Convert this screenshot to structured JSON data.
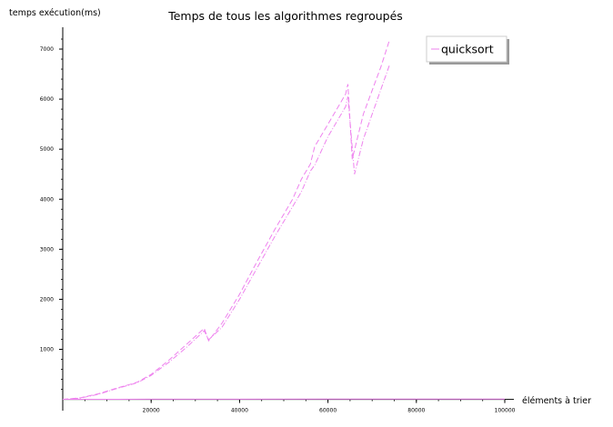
{
  "chart_data": {
    "type": "line",
    "title": "Temps de tous les algorithmes regroupés",
    "xlabel": "éléments à trier",
    "ylabel": "temps exécution(ms)",
    "xlim": [
      0,
      100000
    ],
    "ylim": [
      -80,
      7400
    ],
    "x_ticks": [
      20000,
      40000,
      60000,
      80000,
      100000
    ],
    "y_ticks": [
      1000,
      2000,
      3000,
      4000,
      5000,
      6000,
      7000
    ],
    "grid": false,
    "legend": {
      "placement": "top-right",
      "entries": [
        "quicksort"
      ]
    },
    "series": [
      {
        "name": "quicksort",
        "color": "#ee82ee",
        "dash": "6,3",
        "x": [
          0,
          4000,
          8000,
          12000,
          16000,
          17000,
          20000,
          24000,
          28000,
          32000,
          33000,
          36000,
          40000,
          44000,
          48000,
          52000,
          54000,
          56000,
          57000,
          60000,
          64000,
          64500,
          65500,
          68000,
          72000,
          74000
        ],
        "y": [
          0,
          30,
          110,
          220,
          320,
          350,
          500,
          780,
          1100,
          1420,
          1170,
          1520,
          2100,
          2760,
          3400,
          4000,
          4400,
          4700,
          5050,
          5500,
          6100,
          6300,
          4800,
          5700,
          6650,
          7200
        ]
      },
      {
        "name": "",
        "color": "#ee82ee",
        "dash": "6,2,1,2",
        "x": [
          0,
          4000,
          8000,
          12000,
          16000,
          17000,
          20000,
          24000,
          28000,
          32000,
          33000,
          36000,
          40000,
          44000,
          48000,
          52000,
          54000,
          56000,
          57000,
          60000,
          64000,
          64500,
          66000,
          68000,
          72000,
          74000
        ],
        "y": [
          0,
          25,
          100,
          210,
          310,
          340,
          480,
          740,
          1040,
          1370,
          1190,
          1440,
          2000,
          2630,
          3260,
          3850,
          4150,
          4560,
          4680,
          5250,
          5850,
          6050,
          4500,
          5200,
          6200,
          6700
        ]
      },
      {
        "name": "",
        "color": "#ee82ee",
        "dash": "",
        "x": [
          0,
          20000,
          40000,
          60000,
          80000,
          100000
        ],
        "y": [
          2,
          3,
          4,
          5,
          6,
          8
        ]
      }
    ]
  }
}
